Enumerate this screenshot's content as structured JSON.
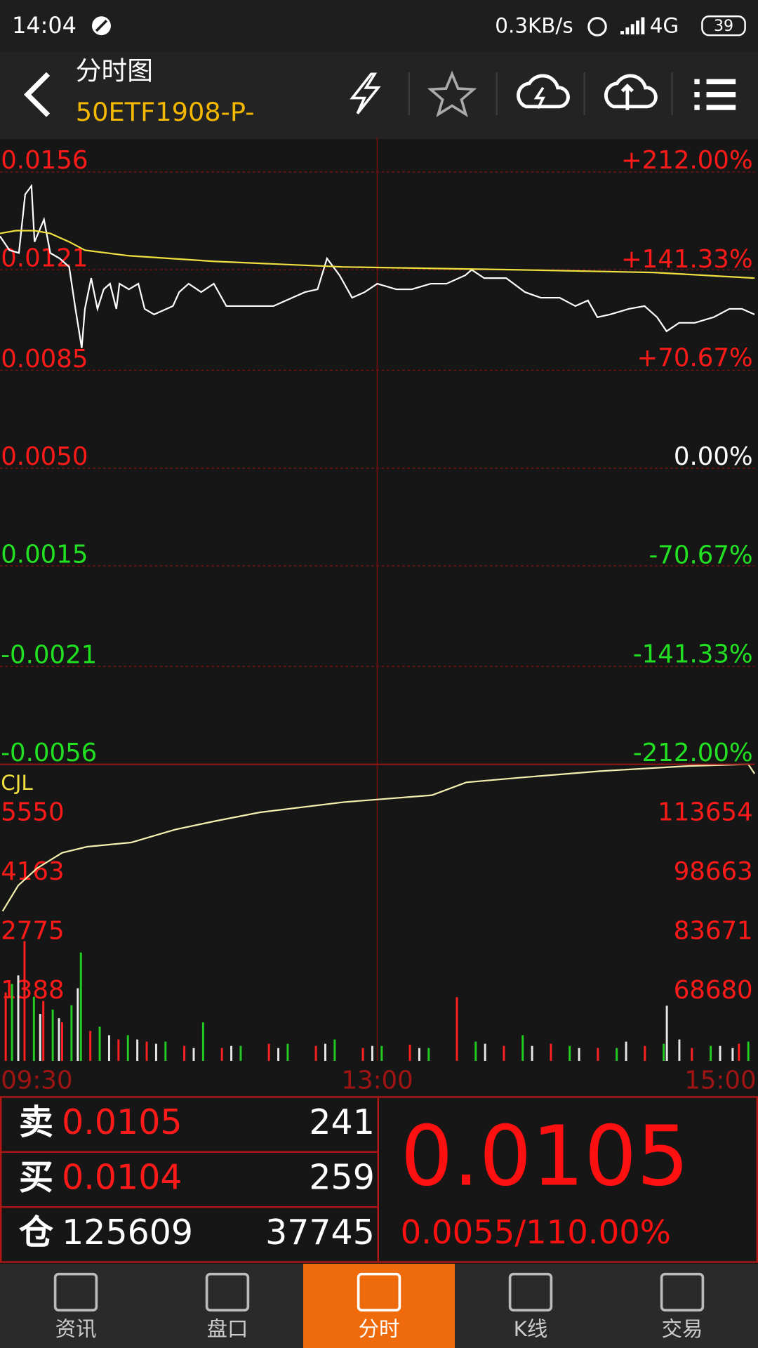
{
  "status_bar": {
    "time": "14:04",
    "speed": "0.3KB/s",
    "network": "4G",
    "battery": "39"
  },
  "header": {
    "title": "分时图",
    "symbol": "50ETF1908-P-"
  },
  "chart_data": [
    {
      "type": "line",
      "ylim": [
        -0.0056,
        0.0156
      ],
      "yticks": [
        0.0156,
        0.0121,
        0.0085,
        {
          "value": 0.005,
          "label": "0.0050"
        },
        0.0015,
        -0.0021,
        -0.0056
      ],
      "y2lim": [
        -212,
        212
      ],
      "y2ticks": [
        {
          "value": 212,
          "label": "+212.00%"
        },
        {
          "value": 141.33,
          "label": "+141.33%"
        },
        {
          "value": 70.67,
          "label": "+70.67%"
        },
        {
          "value": 0,
          "label": "0.00%"
        },
        {
          "value": -70.67,
          "label": "-70.67%"
        },
        {
          "value": -141.33,
          "label": "-141.33%"
        },
        {
          "value": -212,
          "label": "-212.00%"
        }
      ],
      "xlim": [
        0,
        240
      ],
      "grid": true,
      "series": [
        {
          "color": "#ffffff",
          "x": [
            0,
            3,
            6,
            8,
            10,
            11,
            14,
            16,
            19,
            22,
            24,
            26,
            27,
            29,
            31,
            33,
            35,
            37,
            38,
            41,
            44,
            46,
            49,
            55,
            57,
            60,
            64,
            68,
            72,
            77,
            82,
            87,
            93,
            97,
            101,
            104,
            108,
            112,
            116,
            120,
            126,
            131,
            137,
            142,
            148,
            150,
            154,
            161,
            167,
            172,
            178,
            183,
            187,
            190,
            194,
            200,
            205,
            209,
            212,
            216,
            221,
            227,
            232,
            236,
            240
          ],
          "values": [
            0.0133,
            0.0128,
            0.0127,
            0.0148,
            0.0151,
            0.0131,
            0.0139,
            0.0127,
            0.0125,
            0.0122,
            0.0107,
            0.0093,
            0.0107,
            0.0118,
            0.0107,
            0.0114,
            0.0116,
            0.0107,
            0.0116,
            0.0114,
            0.0116,
            0.0107,
            0.0105,
            0.0108,
            0.0113,
            0.0116,
            0.0113,
            0.0116,
            0.0108,
            0.0108,
            0.0108,
            0.0108,
            0.0111,
            0.0113,
            0.0114,
            0.0125,
            0.0119,
            0.0111,
            0.0113,
            0.0116,
            0.0114,
            0.0114,
            0.0116,
            0.0116,
            0.0119,
            0.0121,
            0.0118,
            0.0118,
            0.0113,
            0.0111,
            0.0111,
            0.0108,
            0.011,
            0.0104,
            0.0105,
            0.0107,
            0.0108,
            0.0104,
            0.0099,
            0.0102,
            0.0102,
            0.0104,
            0.0107,
            0.0107,
            0.0105
          ]
        },
        {
          "color": "#f0e040",
          "x": [
            0,
            5,
            11,
            16,
            22,
            27,
            41,
            68,
            109,
            164,
            208,
            240
          ],
          "values": [
            0.0134,
            0.0135,
            0.0135,
            0.0134,
            0.0131,
            0.0128,
            0.0126,
            0.0124,
            0.0122,
            0.0121,
            0.012,
            0.0118
          ]
        }
      ]
    },
    {
      "type": "bar",
      "label": "CJL",
      "xlim": [
        0,
        240
      ],
      "xticks": [
        {
          "value": 0,
          "label": "09:30"
        },
        {
          "value": 120,
          "label": "13:00"
        },
        {
          "value": 240,
          "label": "15:00"
        }
      ],
      "ylim": [
        0,
        6940
      ],
      "yticks": [
        5550,
        4163,
        2775,
        1388
      ],
      "y2lim": [
        53689,
        128645
      ],
      "y2ticks": [
        113654,
        98663,
        83671,
        68680
      ],
      "series": [
        {
          "color": "#ff2020",
          "x": [
            1,
            7,
            13,
            19,
            28,
            37,
            46,
            58,
            70,
            85,
            100,
            115,
            130,
            145,
            160,
            175,
            190,
            205,
            220,
            235
          ],
          "values": [
            1600,
            2800,
            1400,
            900,
            700,
            500,
            450,
            350,
            300,
            400,
            350,
            300,
            380,
            1490,
            350,
            400,
            300,
            350,
            300,
            400
          ]
        },
        {
          "color": "#22cc22",
          "x": [
            3,
            10,
            16,
            22,
            25,
            31,
            40,
            52,
            64,
            76,
            91,
            106,
            121,
            136,
            151,
            166,
            181,
            196,
            211,
            226,
            238
          ],
          "values": [
            1800,
            1500,
            1200,
            1300,
            2535,
            800,
            600,
            450,
            900,
            350,
            400,
            500,
            350,
            300,
            450,
            600,
            350,
            300,
            400,
            350,
            450
          ]
        },
        {
          "color": "#e8e8e8",
          "x": [
            5,
            12,
            18,
            24,
            34,
            43,
            49,
            61,
            73,
            88,
            103,
            118,
            133,
            154,
            169,
            184,
            199,
            212,
            216,
            229,
            233
          ],
          "values": [
            2000,
            1100,
            1000,
            1700,
            600,
            500,
            400,
            300,
            350,
            300,
            400,
            350,
            300,
            400,
            350,
            300,
            450,
            1290,
            500,
            350,
            300
          ]
        },
        {
          "color": "#f5f0b0",
          "axis": "y2",
          "x": [
            0,
            5,
            11,
            19,
            27,
            41,
            55,
            68,
            82,
            109,
            137,
            148,
            164,
            191,
            219,
            238,
            240
          ],
          "values": [
            91500,
            98020,
            102360,
            106270,
            107800,
            108880,
            112140,
            114310,
            116480,
            119090,
            120830,
            124090,
            125180,
            126920,
            128220,
            128650,
            126260
          ]
        }
      ]
    }
  ],
  "quote": {
    "rows": [
      {
        "label": "卖",
        "price": 0.0105,
        "volume": 241
      },
      {
        "label": "买",
        "price": 0.0104,
        "volume": 259
      },
      {
        "label": "仓",
        "price": 125609,
        "volume": 37745
      }
    ],
    "last": 0.0105,
    "change": "0.0055/110.00%"
  },
  "tabs": {
    "items": [
      "资讯",
      "盘口",
      "分时",
      "K线",
      "交易"
    ],
    "active": 2
  }
}
